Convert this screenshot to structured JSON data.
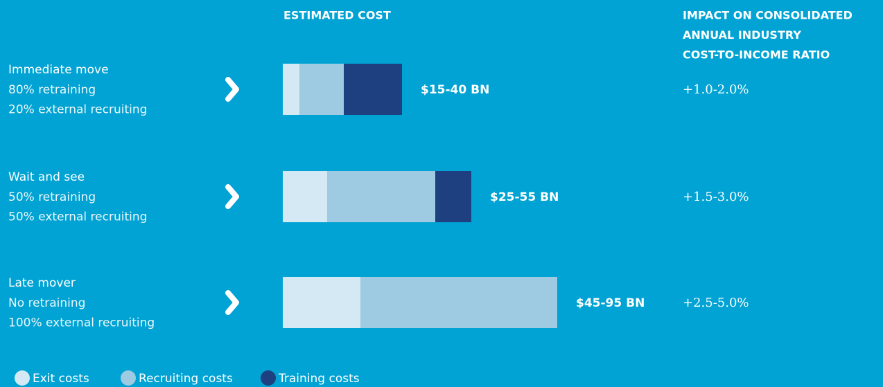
{
  "chart_data": {
    "type": "bar",
    "orientation": "horizontal",
    "stacked": true,
    "cost_header": "ESTIMATED COST",
    "impact_header": [
      "IMPACT ON CONSOLIDATED",
      "ANNUAL INDUSTRY",
      "COST-TO-INCOME RATIO"
    ],
    "categories": [
      "Immediate move",
      "Wait and see",
      "Late mover"
    ],
    "details": [
      [
        "80% retraining",
        "20% external recruiting"
      ],
      [
        "50% retraining",
        "50% external recruiting"
      ],
      [
        "No retraining",
        "100% external recruiting"
      ]
    ],
    "series": [
      {
        "name": "Exit costs",
        "color": "#d4e9f4",
        "values": [
          6,
          16,
          28
        ]
      },
      {
        "name": "Recruiting costs",
        "color": "#9ecbe2",
        "values": [
          16,
          39,
          71
        ]
      },
      {
        "name": "Training costs",
        "color": "#1f4080",
        "values": [
          21,
          13,
          0
        ]
      }
    ],
    "cost_labels": [
      "$15-40 BN",
      "$25-55 BN",
      "$45-95 BN"
    ],
    "impact_labels": [
      "+1.0-2.0%",
      "+1.5-3.0%",
      "+2.5-5.0%"
    ],
    "xlim": [
      0,
      100
    ]
  }
}
